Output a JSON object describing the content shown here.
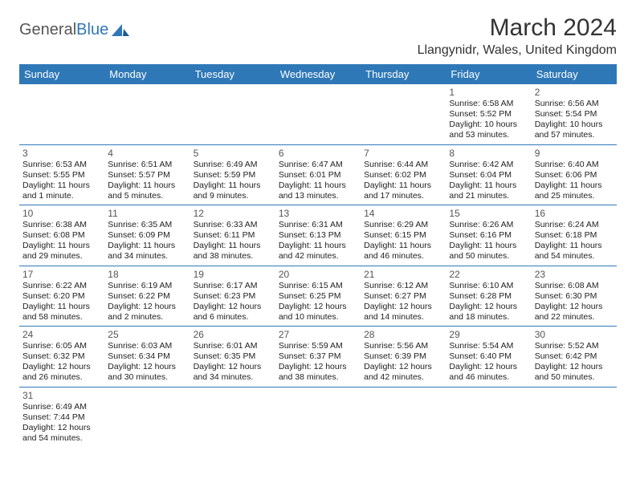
{
  "logo": {
    "text1": "General",
    "text2": "Blue"
  },
  "title": "March 2024",
  "location": "Llangynidr, Wales, United Kingdom",
  "colors": {
    "header_bg": "#2f78b7",
    "header_fg": "#ffffff",
    "border": "#2f78b7",
    "text": "#222222"
  },
  "weekdays": [
    "Sunday",
    "Monday",
    "Tuesday",
    "Wednesday",
    "Thursday",
    "Friday",
    "Saturday"
  ],
  "grid": {
    "rows": 6,
    "cols": 7,
    "first_day_col": 5,
    "days_in_month": 31
  },
  "days": {
    "1": {
      "sunrise": "6:58 AM",
      "sunset": "5:52 PM",
      "daylight": "10 hours and 53 minutes."
    },
    "2": {
      "sunrise": "6:56 AM",
      "sunset": "5:54 PM",
      "daylight": "10 hours and 57 minutes."
    },
    "3": {
      "sunrise": "6:53 AM",
      "sunset": "5:55 PM",
      "daylight": "11 hours and 1 minute."
    },
    "4": {
      "sunrise": "6:51 AM",
      "sunset": "5:57 PM",
      "daylight": "11 hours and 5 minutes."
    },
    "5": {
      "sunrise": "6:49 AM",
      "sunset": "5:59 PM",
      "daylight": "11 hours and 9 minutes."
    },
    "6": {
      "sunrise": "6:47 AM",
      "sunset": "6:01 PM",
      "daylight": "11 hours and 13 minutes."
    },
    "7": {
      "sunrise": "6:44 AM",
      "sunset": "6:02 PM",
      "daylight": "11 hours and 17 minutes."
    },
    "8": {
      "sunrise": "6:42 AM",
      "sunset": "6:04 PM",
      "daylight": "11 hours and 21 minutes."
    },
    "9": {
      "sunrise": "6:40 AM",
      "sunset": "6:06 PM",
      "daylight": "11 hours and 25 minutes."
    },
    "10": {
      "sunrise": "6:38 AM",
      "sunset": "6:08 PM",
      "daylight": "11 hours and 29 minutes."
    },
    "11": {
      "sunrise": "6:35 AM",
      "sunset": "6:09 PM",
      "daylight": "11 hours and 34 minutes."
    },
    "12": {
      "sunrise": "6:33 AM",
      "sunset": "6:11 PM",
      "daylight": "11 hours and 38 minutes."
    },
    "13": {
      "sunrise": "6:31 AM",
      "sunset": "6:13 PM",
      "daylight": "11 hours and 42 minutes."
    },
    "14": {
      "sunrise": "6:29 AM",
      "sunset": "6:15 PM",
      "daylight": "11 hours and 46 minutes."
    },
    "15": {
      "sunrise": "6:26 AM",
      "sunset": "6:16 PM",
      "daylight": "11 hours and 50 minutes."
    },
    "16": {
      "sunrise": "6:24 AM",
      "sunset": "6:18 PM",
      "daylight": "11 hours and 54 minutes."
    },
    "17": {
      "sunrise": "6:22 AM",
      "sunset": "6:20 PM",
      "daylight": "11 hours and 58 minutes."
    },
    "18": {
      "sunrise": "6:19 AM",
      "sunset": "6:22 PM",
      "daylight": "12 hours and 2 minutes."
    },
    "19": {
      "sunrise": "6:17 AM",
      "sunset": "6:23 PM",
      "daylight": "12 hours and 6 minutes."
    },
    "20": {
      "sunrise": "6:15 AM",
      "sunset": "6:25 PM",
      "daylight": "12 hours and 10 minutes."
    },
    "21": {
      "sunrise": "6:12 AM",
      "sunset": "6:27 PM",
      "daylight": "12 hours and 14 minutes."
    },
    "22": {
      "sunrise": "6:10 AM",
      "sunset": "6:28 PM",
      "daylight": "12 hours and 18 minutes."
    },
    "23": {
      "sunrise": "6:08 AM",
      "sunset": "6:30 PM",
      "daylight": "12 hours and 22 minutes."
    },
    "24": {
      "sunrise": "6:05 AM",
      "sunset": "6:32 PM",
      "daylight": "12 hours and 26 minutes."
    },
    "25": {
      "sunrise": "6:03 AM",
      "sunset": "6:34 PM",
      "daylight": "12 hours and 30 minutes."
    },
    "26": {
      "sunrise": "6:01 AM",
      "sunset": "6:35 PM",
      "daylight": "12 hours and 34 minutes."
    },
    "27": {
      "sunrise": "5:59 AM",
      "sunset": "6:37 PM",
      "daylight": "12 hours and 38 minutes."
    },
    "28": {
      "sunrise": "5:56 AM",
      "sunset": "6:39 PM",
      "daylight": "12 hours and 42 minutes."
    },
    "29": {
      "sunrise": "5:54 AM",
      "sunset": "6:40 PM",
      "daylight": "12 hours and 46 minutes."
    },
    "30": {
      "sunrise": "5:52 AM",
      "sunset": "6:42 PM",
      "daylight": "12 hours and 50 minutes."
    },
    "31": {
      "sunrise": "6:49 AM",
      "sunset": "7:44 PM",
      "daylight": "12 hours and 54 minutes."
    }
  },
  "labels": {
    "sunrise": "Sunrise:",
    "sunset": "Sunset:",
    "daylight": "Daylight:"
  }
}
